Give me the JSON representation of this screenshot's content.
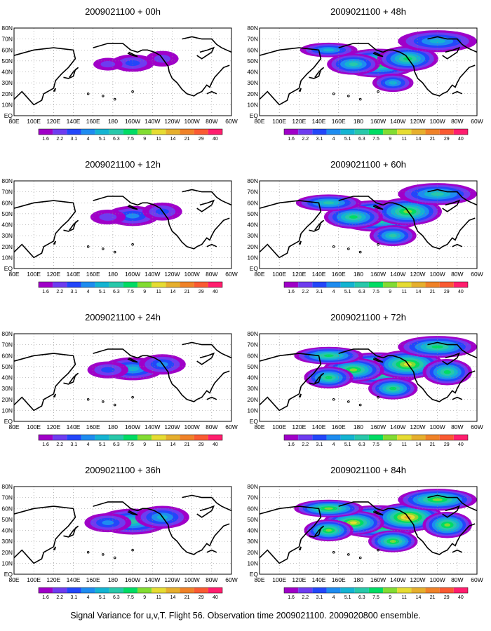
{
  "figure": {
    "caption": "Signal Variance for u,v,T. Flight 56. Observation time 2009021100. 2009020800 ensemble.",
    "lat_labels": [
      "80N",
      "70N",
      "60N",
      "50N",
      "40N",
      "30N",
      "20N",
      "10N",
      "EQ"
    ],
    "lon_labels": [
      "80E",
      "100E",
      "120E",
      "140E",
      "160E",
      "180",
      "160W",
      "140W",
      "120W",
      "100W",
      "80W",
      "60W"
    ],
    "colorbar_labels": [
      "1.6",
      "2.2",
      "3.1",
      "4",
      "5.1",
      "6.3",
      "7.5",
      "9",
      "11",
      "14",
      "21",
      "29",
      "40"
    ],
    "colorbar_colors": [
      "#a000c8",
      "#6e3cf0",
      "#2346fa",
      "#1e8cf0",
      "#14b4d2",
      "#28c8aa",
      "#00dc64",
      "#82dc32",
      "#e6dc32",
      "#e6af2d",
      "#f08228",
      "#fa5a32",
      "#ff1e6e"
    ]
  },
  "panels": [
    {
      "title": "2009021100 + 00h",
      "lead_hours": 0
    },
    {
      "title": "2009021100 + 48h",
      "lead_hours": 48
    },
    {
      "title": "2009021100 + 12h",
      "lead_hours": 12
    },
    {
      "title": "2009021100 + 60h",
      "lead_hours": 60
    },
    {
      "title": "2009021100 + 24h",
      "lead_hours": 24
    },
    {
      "title": "2009021100 + 72h",
      "lead_hours": 72
    },
    {
      "title": "2009021100 + 36h",
      "lead_hours": 36
    },
    {
      "title": "2009021100 + 84h",
      "lead_hours": 84
    }
  ]
}
